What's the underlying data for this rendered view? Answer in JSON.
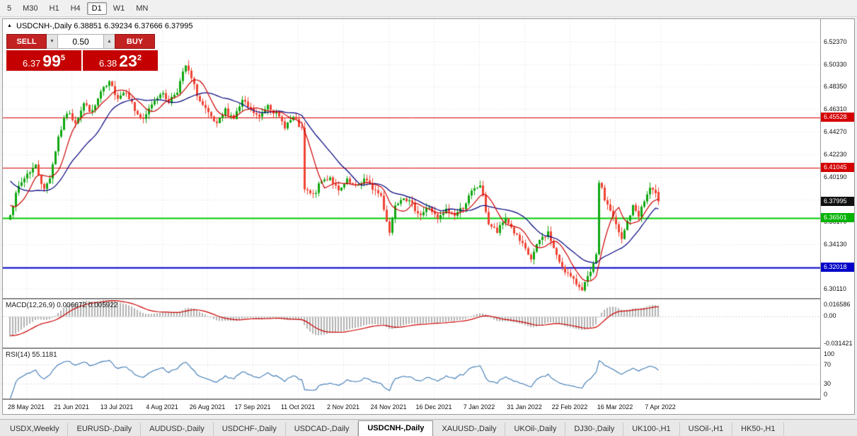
{
  "toolbar": {
    "timeframes": [
      {
        "label": "5",
        "active": false
      },
      {
        "label": "M30",
        "active": false
      },
      {
        "label": "H1",
        "active": false
      },
      {
        "label": "H4",
        "active": false
      },
      {
        "label": "D1",
        "active": true
      },
      {
        "label": "W1",
        "active": false
      },
      {
        "label": "MN",
        "active": false
      }
    ]
  },
  "chart_header": {
    "collapse_icon": "▲",
    "title": "USDCNH-,Daily 6.38851 6.39234 6.37666 6.37995"
  },
  "trade_panel": {
    "sell_label": "SELL",
    "buy_label": "BUY",
    "volume": "0.50",
    "spin_down": "▼",
    "spin_up": "▲",
    "sell_price": {
      "head": "6.37",
      "big": "99",
      "sup": "5"
    },
    "buy_price": {
      "head": "6.38",
      "big": "23",
      "sup": "2"
    }
  },
  "price_axis": {
    "labels": [
      "6.52370",
      "6.50330",
      "6.48350",
      "6.46310",
      "6.44270",
      "6.42230",
      "6.40190",
      "6.38150",
      "6.36170",
      "6.34130",
      "6.32090",
      "6.30110"
    ],
    "badges": [
      {
        "text": "6.45528",
        "price": 6.45528,
        "color": "#d40000"
      },
      {
        "text": "6.41045",
        "price": 6.41045,
        "color": "#d40000"
      },
      {
        "text": "6.37995",
        "price": 6.37995,
        "color": "#111111"
      },
      {
        "text": "6.36501",
        "price": 6.36501,
        "color": "#00b300"
      },
      {
        "text": "6.32018",
        "price": 6.32018,
        "color": "#0000c8"
      }
    ]
  },
  "macd_panel": {
    "label": "MACD(12,26,9) 0.006672 0.005922",
    "axis_top": "0.016586",
    "axis_zero": "0.00",
    "axis_bottom": "-0.031421",
    "y_max": 0.016586,
    "y_min": -0.031421
  },
  "rsi_panel": {
    "label": "RSI(14) 55.1181",
    "axis": [
      "100",
      "70",
      "30",
      "0"
    ],
    "level_lines": [
      70,
      30
    ]
  },
  "date_axis": {
    "labels": [
      "28 May 2021",
      "21 Jun 2021",
      "13 Jul 2021",
      "4 Aug 2021",
      "26 Aug 2021",
      "17 Sep 2021",
      "11 Oct 2021",
      "2 Nov 2021",
      "24 Nov 2021",
      "16 Dec 2021",
      "7 Jan 2022",
      "31 Jan 2022",
      "22 Feb 2022",
      "16 Mar 2022",
      "7 Apr 2022"
    ]
  },
  "tabs": [
    {
      "label": "USDX,Weekly",
      "active": false
    },
    {
      "label": "EURUSD-,Daily",
      "active": false
    },
    {
      "label": "AUDUSD-,Daily",
      "active": false
    },
    {
      "label": "USDCHF-,Daily",
      "active": false
    },
    {
      "label": "USDCAD-,Daily",
      "active": false
    },
    {
      "label": "USDCNH-,Daily",
      "active": true
    },
    {
      "label": "XAUUSD-,Daily",
      "active": false
    },
    {
      "label": "UKOil-,Daily",
      "active": false
    },
    {
      "label": "DJ30-,Daily",
      "active": false
    },
    {
      "label": "UK100-,H1",
      "active": false
    },
    {
      "label": "USOil-,H1",
      "active": false
    },
    {
      "label": "HK50-,H1",
      "active": false
    }
  ],
  "chart_data": {
    "type": "candlestick",
    "symbol": "USDCNH",
    "timeframe": "Daily",
    "ohlc_current": {
      "open": 6.38851,
      "high": 6.39234,
      "low": 6.37666,
      "close": 6.37995
    },
    "indicator_values": {
      "macd_main": 0.006672,
      "macd_signal": 0.005922,
      "rsi": 55.1181
    },
    "y_min": 6.293,
    "y_max": 6.544,
    "gridline_prices": [
      6.5237,
      6.5033,
      6.4835,
      6.4631,
      6.4427,
      6.4223,
      6.4019,
      6.3815,
      6.3617,
      6.3413,
      6.3209,
      6.3011
    ],
    "levels": [
      {
        "price": 6.45528,
        "color": "#d40000",
        "width": 1
      },
      {
        "price": 6.41045,
        "color": "#d40000",
        "width": 1
      },
      {
        "price": 6.36501,
        "color": "#00cc00",
        "width": 2
      },
      {
        "price": 6.32018,
        "color": "#0000c8",
        "width": 2
      }
    ],
    "candle_count": 230,
    "anchors": [
      [
        0,
        6.37
      ],
      [
        3,
        6.393
      ],
      [
        6,
        6.405
      ],
      [
        9,
        6.412
      ],
      [
        12,
        6.39
      ],
      [
        14,
        6.402
      ],
      [
        17,
        6.438
      ],
      [
        20,
        6.46
      ],
      [
        23,
        6.452
      ],
      [
        26,
        6.468
      ],
      [
        29,
        6.46
      ],
      [
        32,
        6.478
      ],
      [
        35,
        6.486
      ],
      [
        38,
        6.474
      ],
      [
        41,
        6.48
      ],
      [
        44,
        6.462
      ],
      [
        47,
        6.452
      ],
      [
        50,
        6.468
      ],
      [
        53,
        6.478
      ],
      [
        56,
        6.47
      ],
      [
        59,
        6.48
      ],
      [
        62,
        6.502
      ],
      [
        64,
        6.49
      ],
      [
        67,
        6.47
      ],
      [
        70,
        6.458
      ],
      [
        73,
        6.448
      ],
      [
        76,
        6.462
      ],
      [
        79,
        6.455
      ],
      [
        82,
        6.47
      ],
      [
        85,
        6.462
      ],
      [
        88,
        6.455
      ],
      [
        91,
        6.468
      ],
      [
        94,
        6.458
      ],
      [
        97,
        6.448
      ],
      [
        100,
        6.455
      ],
      [
        102,
        6.448
      ],
      [
        103,
        6.444
      ],
      [
        104,
        6.39
      ],
      [
        107,
        6.385
      ],
      [
        110,
        6.398
      ],
      [
        113,
        6.402
      ],
      [
        116,
        6.388
      ],
      [
        119,
        6.398
      ],
      [
        122,
        6.392
      ],
      [
        125,
        6.4
      ],
      [
        128,
        6.392
      ],
      [
        131,
        6.385
      ],
      [
        134,
        6.352
      ],
      [
        136,
        6.378
      ],
      [
        139,
        6.385
      ],
      [
        142,
        6.376
      ],
      [
        145,
        6.368
      ],
      [
        148,
        6.375
      ],
      [
        151,
        6.363
      ],
      [
        154,
        6.372
      ],
      [
        157,
        6.368
      ],
      [
        160,
        6.375
      ],
      [
        163,
        6.388
      ],
      [
        166,
        6.395
      ],
      [
        169,
        6.36
      ],
      [
        172,
        6.352
      ],
      [
        175,
        6.365
      ],
      [
        178,
        6.352
      ],
      [
        181,
        6.34
      ],
      [
        184,
        6.328
      ],
      [
        187,
        6.345
      ],
      [
        190,
        6.352
      ],
      [
        193,
        6.33
      ],
      [
        196,
        6.318
      ],
      [
        199,
        6.308
      ],
      [
        202,
        6.302
      ],
      [
        205,
        6.315
      ],
      [
        207,
        6.33
      ],
      [
        208,
        6.398
      ],
      [
        210,
        6.382
      ],
      [
        212,
        6.372
      ],
      [
        214,
        6.358
      ],
      [
        216,
        6.345
      ],
      [
        218,
        6.362
      ],
      [
        220,
        6.375
      ],
      [
        222,
        6.368
      ],
      [
        224,
        6.38
      ],
      [
        226,
        6.392
      ],
      [
        228,
        6.385
      ],
      [
        229,
        6.38
      ]
    ],
    "colors": {
      "up": "#0fa70f",
      "down": "#ef4434",
      "ma_fast": "#cc0000",
      "ma_slow": "#00007f",
      "macd_bar": "#b2b2b2",
      "macd_signal": "#cc0000",
      "rsi_line": "#3c78b4",
      "grid": "#dcdcdc"
    }
  }
}
